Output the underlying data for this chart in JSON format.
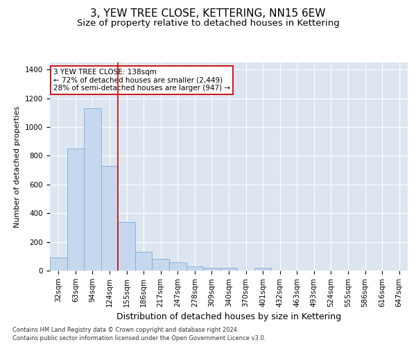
{
  "title": "3, YEW TREE CLOSE, KETTERING, NN15 6EW",
  "subtitle": "Size of property relative to detached houses in Kettering",
  "xlabel": "Distribution of detached houses by size in Kettering",
  "ylabel": "Number of detached properties",
  "categories": [
    "32sqm",
    "63sqm",
    "94sqm",
    "124sqm",
    "155sqm",
    "186sqm",
    "217sqm",
    "247sqm",
    "278sqm",
    "309sqm",
    "340sqm",
    "370sqm",
    "401sqm",
    "432sqm",
    "463sqm",
    "493sqm",
    "524sqm",
    "555sqm",
    "586sqm",
    "616sqm",
    "647sqm"
  ],
  "values": [
    90,
    850,
    1130,
    730,
    340,
    130,
    80,
    60,
    30,
    20,
    20,
    0,
    20,
    0,
    0,
    0,
    0,
    0,
    0,
    0,
    0
  ],
  "bar_color": "#c5d8ee",
  "bar_edge_color": "#7aadd4",
  "vline_x_idx": 3.5,
  "vline_color": "#cc0000",
  "annotation_text": "3 YEW TREE CLOSE: 138sqm\n← 72% of detached houses are smaller (2,449)\n28% of semi-detached houses are larger (947) →",
  "annotation_box_color": "#ffffff",
  "annotation_box_edge": "#cc0000",
  "ylim": [
    0,
    1450
  ],
  "yticks": [
    0,
    200,
    400,
    600,
    800,
    1000,
    1200,
    1400
  ],
  "background_color": "#dde6f0",
  "footer1": "Contains HM Land Registry data © Crown copyright and database right 2024.",
  "footer2": "Contains public sector information licensed under the Open Government Licence v3.0.",
  "title_fontsize": 11,
  "subtitle_fontsize": 9.5,
  "xlabel_fontsize": 9,
  "ylabel_fontsize": 8,
  "tick_fontsize": 7.5,
  "annot_fontsize": 7.5,
  "footer_fontsize": 6
}
